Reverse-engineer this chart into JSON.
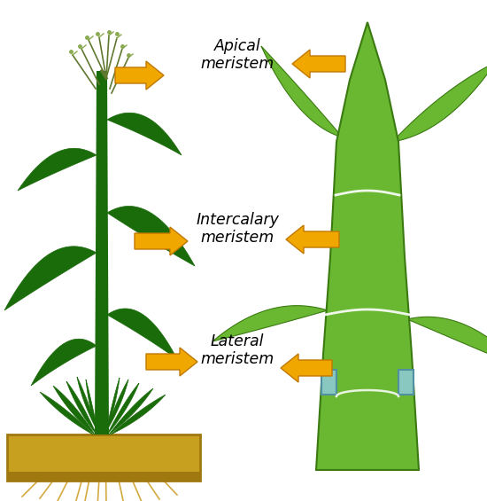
{
  "background_color": "#ffffff",
  "plant_dark": "#1a6b0a",
  "plant_mid": "#2d8a10",
  "plant_light": "#5ab030",
  "right_green": "#6ab832",
  "right_dark": "#3a7a10",
  "right_lighter": "#80c840",
  "soil_top": "#c8a020",
  "soil_bottom": "#a07810",
  "arrow_fill": "#f0a800",
  "arrow_edge": "#c07800",
  "node_line": "#b8d8a0",
  "lateral_fill": "#88c8c0",
  "lateral_edge": "#5090a0",
  "root_color": "#d4aa40",
  "tassel_color": "#8aaa50",
  "tassel_dark": "#607830",
  "label1": "Apical\nmeristem",
  "label2": "Intercalary\nmeristem",
  "label3": "Lateral\nmeristem",
  "label_fs": 12.5
}
